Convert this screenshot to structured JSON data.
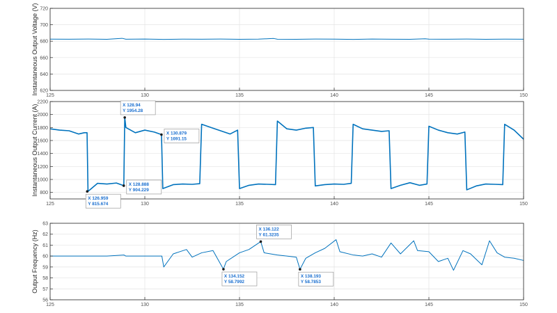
{
  "colors": {
    "line": "#0072BD",
    "datatip_text": "#1a6fd0",
    "grid": "#e3e3e3",
    "axes": "#262626",
    "tick_label": "#4d4d4d"
  },
  "chart_data": [
    {
      "type": "line",
      "title": "",
      "xlabel": "",
      "ylabel": "Instantaneous Output Voltage (V)",
      "xlim": [
        125,
        150
      ],
      "ylim": [
        620,
        720
      ],
      "xticks": [
        125,
        130,
        135,
        140,
        145,
        150
      ],
      "yticks": [
        620,
        640,
        660,
        680,
        700,
        720
      ],
      "grid": true,
      "series": [
        {
          "x": [
            125,
            126,
            127,
            128,
            128.8,
            129,
            130,
            131,
            132,
            133,
            134,
            135,
            136,
            136.8,
            137,
            138,
            139,
            140,
            141,
            142,
            143,
            144,
            144.8,
            145,
            146,
            147,
            148,
            149,
            150
          ],
          "y": [
            682.5,
            682.4,
            682.6,
            682.3,
            683.5,
            682.4,
            682.6,
            682.2,
            682.5,
            682.4,
            682.6,
            682.3,
            682.5,
            683.3,
            682.4,
            682.3,
            682.6,
            682.5,
            682.2,
            682.6,
            682.4,
            682.3,
            682.9,
            682.5,
            682.4,
            682.6,
            682.3,
            682.5,
            682.4
          ]
        }
      ],
      "datatips": []
    },
    {
      "type": "line",
      "title": "",
      "xlabel": "",
      "ylabel": "Instantaneous Output Current (A)",
      "xlim": [
        125,
        150
      ],
      "ylim": [
        700,
        2200
      ],
      "xticks": [
        125,
        130,
        135,
        140,
        145,
        150
      ],
      "yticks": [
        800,
        1000,
        1200,
        1400,
        1600,
        1800,
        2000,
        2200
      ],
      "grid": true,
      "series": [
        {
          "x": [
            125,
            125.5,
            126,
            126.5,
            126.8,
            126.95,
            127.0,
            127.5,
            128.0,
            128.5,
            128.89,
            128.94,
            129.0,
            129.5,
            130.0,
            130.5,
            130.88,
            130.95,
            131.5,
            132.0,
            132.5,
            132.9,
            133.0,
            133.5,
            134.0,
            134.5,
            134.9,
            135.0,
            135.5,
            136.0,
            136.5,
            136.9,
            137.0,
            137.5,
            138.0,
            138.5,
            138.9,
            139.0,
            139.5,
            140.0,
            140.5,
            140.9,
            141.0,
            141.5,
            142.0,
            142.5,
            142.9,
            143.0,
            143.5,
            144.0,
            144.5,
            144.9,
            145.0,
            145.5,
            146.0,
            146.5,
            146.9,
            147.0,
            147.5,
            148.0,
            148.5,
            148.9,
            149.0,
            149.5,
            150.0
          ],
          "y": [
            1780,
            1760,
            1750,
            1700,
            1720,
            1720,
            815.674,
            940,
            930,
            945,
            904.229,
            1954.28,
            1800,
            1720,
            1760,
            1730,
            1691.15,
            860,
            920,
            930,
            925,
            935,
            1850,
            1800,
            1750,
            1700,
            1760,
            860,
            910,
            930,
            925,
            920,
            1900,
            1780,
            1760,
            1790,
            1800,
            900,
            920,
            930,
            925,
            940,
            1850,
            1780,
            1760,
            1740,
            1750,
            860,
            910,
            950,
            910,
            930,
            1820,
            1760,
            1720,
            1700,
            1730,
            840,
            900,
            930,
            925,
            920,
            1850,
            1760,
            1620
          ]
        }
      ],
      "datatips": [
        {
          "x_label": "X 126.959",
          "y_label": "Y 815.674",
          "x": 126.959,
          "y": 815.674,
          "side": "below"
        },
        {
          "x_label": "X 128.94",
          "y_label": "Y 1954.28",
          "x": 128.94,
          "y": 1954.28,
          "side": "above"
        },
        {
          "x_label": "X 128.888",
          "y_label": "Y 904.229",
          "x": 128.888,
          "y": 904.229,
          "side": "right"
        },
        {
          "x_label": "X 130.879",
          "y_label": "Y 1691.15",
          "x": 130.879,
          "y": 1691.15,
          "side": "right"
        }
      ]
    },
    {
      "type": "line",
      "title": "",
      "xlabel": "",
      "ylabel": "Output Frequency (Hz)",
      "xlim": [
        125,
        150
      ],
      "ylim": [
        56,
        63
      ],
      "xticks": [
        125,
        130,
        135,
        140,
        145,
        150
      ],
      "yticks": [
        56,
        57,
        58,
        59,
        60,
        61,
        62,
        63
      ],
      "grid": true,
      "series": [
        {
          "x": [
            125,
            126,
            127,
            128,
            128.9,
            129.0,
            130.0,
            130.9,
            131.0,
            131.5,
            132.2,
            132.5,
            133.0,
            133.6,
            134.15,
            134.3,
            135.0,
            135.5,
            136.122,
            136.3,
            137.0,
            137.5,
            138.0,
            138.193,
            138.5,
            139.0,
            139.5,
            140.1,
            140.3,
            141.0,
            141.5,
            142.0,
            142.5,
            143.0,
            143.5,
            144.2,
            144.4,
            145.0,
            145.5,
            146.0,
            146.3,
            146.8,
            147.2,
            147.8,
            148.2,
            148.6,
            149.0,
            149.5,
            150.0
          ],
          "y": [
            60.0,
            60.0,
            60.0,
            60.0,
            60.1,
            60.0,
            60.0,
            60.0,
            59.0,
            60.2,
            60.6,
            59.9,
            60.3,
            60.5,
            58.7992,
            59.5,
            60.3,
            60.6,
            61.3235,
            60.3,
            60.1,
            60.0,
            59.9,
            58.7853,
            59.8,
            60.3,
            60.7,
            61.5,
            60.4,
            60.1,
            60.0,
            60.2,
            59.9,
            61.2,
            60.2,
            61.4,
            60.5,
            60.4,
            59.5,
            59.8,
            58.7,
            60.5,
            60.2,
            59.2,
            61.4,
            60.3,
            59.9,
            59.8,
            59.6
          ]
        }
      ],
      "datatips": [
        {
          "x_label": "X 134.152",
          "y_label": "Y 58.7992",
          "x": 134.152,
          "y": 58.7992,
          "side": "below"
        },
        {
          "x_label": "X 136.122",
          "y_label": "Y 61.3235",
          "x": 136.122,
          "y": 61.3235,
          "side": "above"
        },
        {
          "x_label": "X 138.193",
          "y_label": "Y 58.7853",
          "x": 138.193,
          "y": 58.7853,
          "side": "below"
        }
      ]
    }
  ]
}
